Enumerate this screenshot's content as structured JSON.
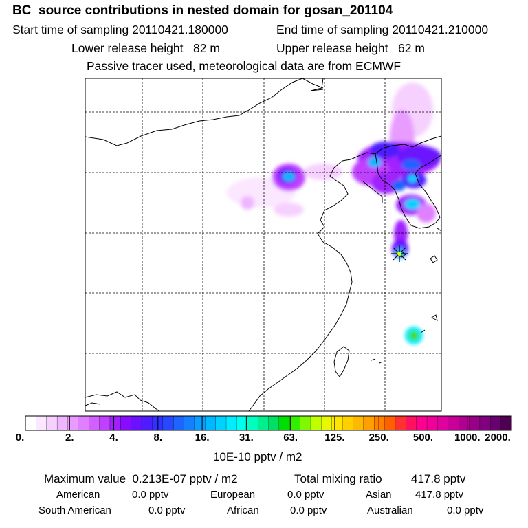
{
  "header": {
    "title": "BC  source contributions in nested domain for gosan_201104",
    "start_time": "Start time of sampling 20110421.180000",
    "end_time": "End time of sampling 20110421.210000",
    "lower_height": "Lower release height   82 m",
    "upper_height": "Upper release height   62 m",
    "tracer_info": "Passive tracer used, meteorological data are from ECMWF"
  },
  "colorbar": {
    "colors": [
      "#ffffff",
      "#fbe7ff",
      "#f6d0ff",
      "#efb6ff",
      "#e89cff",
      "#e080ff",
      "#d160ff",
      "#c040ff",
      "#a020ff",
      "#8a0cff",
      "#6a12ff",
      "#4e1cff",
      "#3232ff",
      "#2848ff",
      "#1e64ff",
      "#1480ff",
      "#0a9cff",
      "#00b8ff",
      "#00d2ff",
      "#00ecff",
      "#00ffee",
      "#00ffc0",
      "#00f090",
      "#00e064",
      "#00e000",
      "#30f000",
      "#80f800",
      "#c0ff00",
      "#e8f800",
      "#ffe600",
      "#ffd000",
      "#ffb800",
      "#ffa000",
      "#ff8000",
      "#ff6000",
      "#ff3030",
      "#ff1060",
      "#ff0090",
      "#f00098",
      "#e000a0",
      "#c80098",
      "#b00090",
      "#980088",
      "#800080",
      "#680070",
      "#500050"
    ],
    "tick_labels": [
      "0.",
      "2.",
      "4.",
      "8.",
      "16.",
      "31.",
      "63.",
      "125.",
      "250.",
      "500.",
      "1000.",
      "2000."
    ],
    "units": "10E-10 pptv / m2"
  },
  "summary": {
    "max_value": "Maximum value  0.213E-07 pptv / m2",
    "total_label": "Total mixing ratio",
    "total_value": "417.8 pptv",
    "regions": [
      {
        "name": "American",
        "value": "0.0 pptv"
      },
      {
        "name": "European",
        "value": "0.0 pptv"
      },
      {
        "name": "Asian",
        "value": "417.8 pptv"
      },
      {
        "name": "South American",
        "value": "0.0 pptv"
      },
      {
        "name": "African",
        "value": "0.0 pptv"
      },
      {
        "name": "Australian",
        "value": "0.0 pptv"
      }
    ]
  },
  "map": {
    "receptor_icon": "star-icon"
  }
}
